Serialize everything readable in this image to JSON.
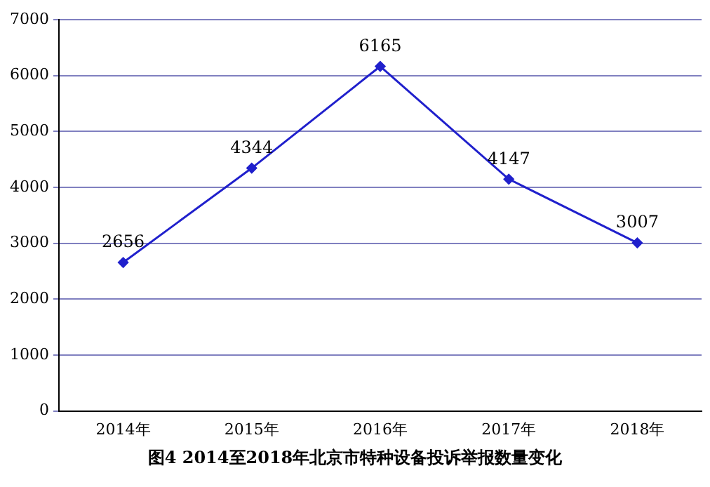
{
  "chart_data": {
    "type": "line",
    "title": "图4  2014至2018年北京市特种设备投诉举报数量变化",
    "categories": [
      "2014年",
      "2015年",
      "2016年",
      "2017年",
      "2018年"
    ],
    "series": [
      {
        "color": "#2020cc",
        "values": [
          2656,
          4344,
          6165,
          4147,
          3007
        ]
      }
    ],
    "ylim": [
      0,
      7000
    ],
    "yticks": [
      0,
      1000,
      2000,
      3000,
      4000,
      5000,
      6000,
      7000
    ],
    "grid": "y",
    "legend": false,
    "marker": "diamond",
    "line_style": "solid",
    "data_labels": true
  }
}
